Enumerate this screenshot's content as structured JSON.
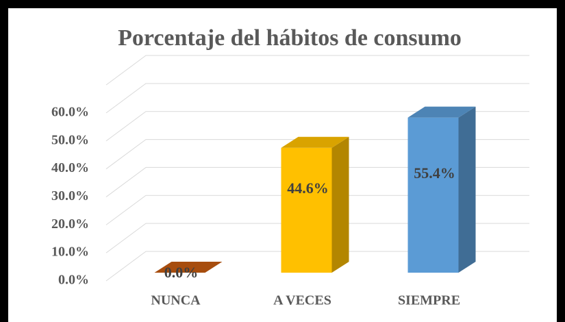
{
  "chart_data": {
    "type": "bar3d",
    "title": "Porcentaje del hábitos de consumo",
    "categories": [
      "NUNCA",
      "A VECES",
      "SIEMPRE"
    ],
    "values": [
      0.0,
      44.6,
      55.4
    ],
    "value_labels": [
      "0.0%",
      "44.6%",
      "55.4%"
    ],
    "colors": [
      "#c55a11",
      "#ffc000",
      "#5b9bd5"
    ],
    "ylim": [
      0,
      70
    ],
    "yticks": [
      {
        "value": 0,
        "label": "0.0%"
      },
      {
        "value": 10,
        "label": "10.0%"
      },
      {
        "value": 20,
        "label": "20.0%"
      },
      {
        "value": 30,
        "label": "30.0%"
      },
      {
        "value": 40,
        "label": "40.0%"
      },
      {
        "value": 50,
        "label": "50.0%"
      },
      {
        "value": 60,
        "label": "60.0%"
      }
    ],
    "grid": true
  }
}
